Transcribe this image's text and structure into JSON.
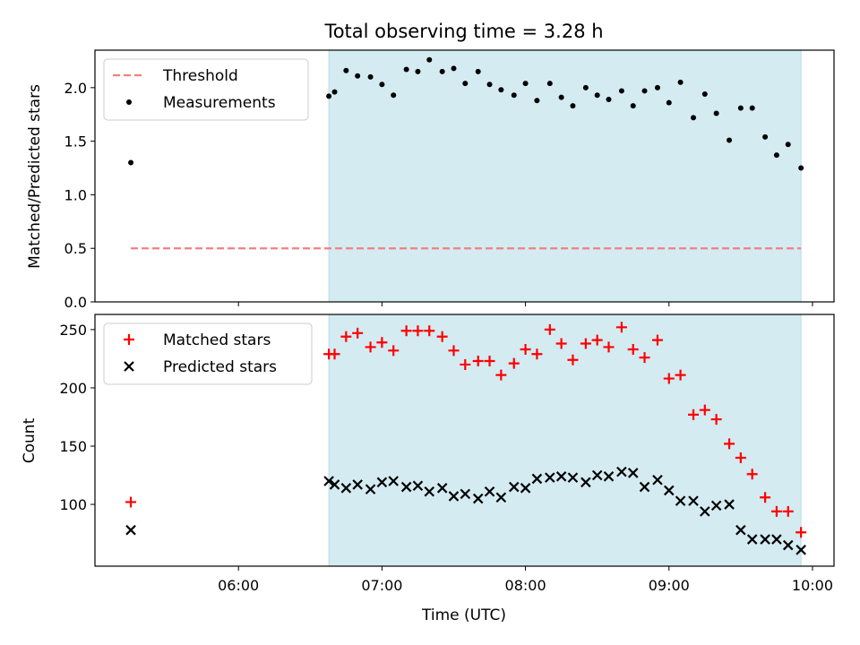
{
  "chart_data": [
    {
      "type": "scatter",
      "title": "Total observing time = 3.28 h",
      "ylabel": "Matched/Predicted stars",
      "xlabel": "",
      "xlim_hours": [
        5.0,
        10.15
      ],
      "ylim": [
        0,
        2.35
      ],
      "y_ticks": [
        "0.0",
        "0.5",
        "1.0",
        "1.5",
        "2.0"
      ],
      "y_tick_values": [
        0.0,
        0.5,
        1.0,
        1.5,
        2.0
      ],
      "shaded_span_hours": [
        6.63,
        9.92
      ],
      "shade_color": "#d4ebf2",
      "legend_placement": "upper-left",
      "legend": [
        {
          "label": "Threshold",
          "marker": "dashed-line",
          "color": "#f08080"
        },
        {
          "label": "Measurements",
          "marker": "dot",
          "color": "#000000"
        }
      ],
      "threshold": {
        "name": "Threshold",
        "y": 0.5,
        "x_range_hours": [
          5.25,
          9.92
        ],
        "color": "#f08080"
      },
      "series": [
        {
          "name": "Measurements",
          "color": "#000000",
          "x_hours": [
            5.25,
            6.63,
            6.67,
            6.75,
            6.83,
            6.92,
            7.0,
            7.08,
            7.17,
            7.25,
            7.33,
            7.42,
            7.5,
            7.58,
            7.67,
            7.75,
            7.83,
            7.92,
            8.0,
            8.08,
            8.17,
            8.25,
            8.33,
            8.42,
            8.5,
            8.58,
            8.67,
            8.75,
            8.83,
            8.92,
            9.0,
            9.08,
            9.17,
            9.25,
            9.33,
            9.42,
            9.5,
            9.58,
            9.67,
            9.75,
            9.83,
            9.92
          ],
          "y": [
            1.3,
            1.92,
            1.96,
            2.16,
            2.11,
            2.1,
            2.03,
            1.93,
            2.17,
            2.15,
            2.26,
            2.15,
            2.18,
            2.04,
            2.15,
            2.03,
            1.98,
            1.93,
            2.04,
            1.88,
            2.04,
            1.91,
            1.83,
            2.0,
            1.93,
            1.89,
            1.97,
            1.83,
            1.97,
            2.0,
            1.86,
            2.05,
            1.72,
            1.94,
            1.76,
            1.51,
            1.81,
            1.81,
            1.54,
            1.37,
            1.47,
            1.25
          ]
        }
      ]
    },
    {
      "type": "scatter",
      "title": "",
      "ylabel": "Count",
      "xlabel": "Time (UTC)",
      "xlim_hours": [
        5.0,
        10.15
      ],
      "ylim": [
        47,
        263
      ],
      "y_ticks": [
        "100",
        "150",
        "200",
        "250"
      ],
      "y_tick_values": [
        100,
        150,
        200,
        250
      ],
      "x_ticks": [
        "06:00",
        "07:00",
        "08:00",
        "09:00",
        "10:00"
      ],
      "x_tick_hours": [
        6,
        7,
        8,
        9,
        10
      ],
      "shaded_span_hours": [
        6.63,
        9.92
      ],
      "shade_color": "#d4ebf2",
      "legend_placement": "upper-left",
      "legend": [
        {
          "label": "Matched stars",
          "marker": "plus",
          "color": "#ff0000"
        },
        {
          "label": "Predicted stars",
          "marker": "x",
          "color": "#000000"
        }
      ],
      "series": [
        {
          "name": "Matched stars",
          "marker": "plus",
          "color": "#ff0000",
          "x_hours": [
            5.25,
            6.63,
            6.67,
            6.75,
            6.83,
            6.92,
            7.0,
            7.08,
            7.17,
            7.25,
            7.33,
            7.42,
            7.5,
            7.58,
            7.67,
            7.75,
            7.83,
            7.92,
            8.0,
            8.08,
            8.17,
            8.25,
            8.33,
            8.42,
            8.5,
            8.58,
            8.67,
            8.75,
            8.83,
            8.92,
            9.0,
            9.08,
            9.17,
            9.25,
            9.33,
            9.42,
            9.5,
            9.58,
            9.67,
            9.75,
            9.83,
            9.92
          ],
          "y": [
            102,
            229,
            229,
            244,
            247,
            235,
            239,
            232,
            249,
            249,
            249,
            244,
            232,
            220,
            223,
            223,
            211,
            221,
            233,
            229,
            250,
            238,
            224,
            238,
            241,
            235,
            252,
            233,
            226,
            241,
            208,
            211,
            177,
            181,
            173,
            152,
            140,
            126,
            106,
            94,
            94,
            76
          ]
        },
        {
          "name": "Predicted stars",
          "marker": "x",
          "color": "#000000",
          "x_hours": [
            5.25,
            6.63,
            6.67,
            6.75,
            6.83,
            6.92,
            7.0,
            7.08,
            7.17,
            7.25,
            7.33,
            7.42,
            7.5,
            7.58,
            7.67,
            7.75,
            7.83,
            7.92,
            8.0,
            8.08,
            8.17,
            8.25,
            8.33,
            8.42,
            8.5,
            8.58,
            8.67,
            8.75,
            8.83,
            8.92,
            9.0,
            9.08,
            9.17,
            9.25,
            9.33,
            9.42,
            9.5,
            9.58,
            9.67,
            9.75,
            9.83,
            9.92
          ],
          "y": [
            78,
            120,
            117,
            114,
            117,
            113,
            119,
            120,
            115,
            116,
            111,
            114,
            107,
            109,
            105,
            111,
            106,
            115,
            114,
            122,
            123,
            124,
            123,
            119,
            125,
            124,
            128,
            127,
            115,
            121,
            112,
            103,
            103,
            94,
            99,
            100,
            78,
            70,
            70,
            70,
            65,
            61
          ]
        }
      ]
    }
  ]
}
